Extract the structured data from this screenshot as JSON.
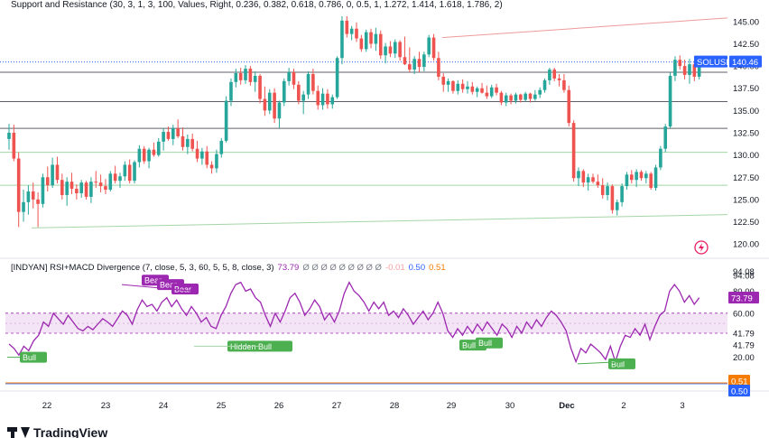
{
  "chart_title": "Support and Resistance (30, 3, 1, 3, 100, Values, Right, 0.236, 0.382, 0.618, 0.786, 0, 0.5, 1, 1.272, 1.414, 1.618, 1.786, 2)",
  "symbol_badge": "SOLUSD",
  "last_price_badge": "140.46",
  "indicator": {
    "name": "[INDYAN] RSI+MACD Divergence (7, close, 5, 3, 60, 5, 5, 8, close, 3)",
    "rsi_value": "73.79",
    "placeholders": "Ø Ø Ø Ø Ø Ø Ø Ø Ø",
    "v1": "-0.01",
    "v2": "0.50",
    "v3": "0.51",
    "badge_rsi": "73.79",
    "badge_v3": "0.51",
    "badge_v2": "0.50"
  },
  "branding": {
    "logo_text": "TradingView"
  },
  "colors": {
    "up": "#26a69a",
    "down": "#ef5350",
    "rsi_line": "#9c27b0",
    "band_fill": "#f3e5f5",
    "support_line": "#a5d6a7",
    "resistance_line": "#ef9a9a",
    "badge_blue": "#2962ff",
    "badge_orange": "#f57c00",
    "label_green": "#4caf50",
    "label_purple": "#9c27b0"
  },
  "chart_data": {
    "type": "candlestick",
    "x_tick_labels": [
      "22",
      "23",
      "24",
      "25",
      "26",
      "27",
      "28",
      "29",
      "30",
      "Dec",
      "2",
      "3"
    ],
    "price_axis_labels": [
      "145.00",
      "142.50",
      "140.00",
      "137.50",
      "135.00",
      "132.50",
      "130.00",
      "127.50",
      "125.00",
      "122.50",
      "120.00"
    ],
    "price_range": [
      119.0,
      146.0
    ],
    "last_price": 140.46,
    "ohlc": [
      [
        131.8,
        133.5,
        130.6,
        132.5
      ],
      [
        132.5,
        133.4,
        129.3,
        129.6
      ],
      [
        129.6,
        130.3,
        121.9,
        123.6
      ],
      [
        123.6,
        126.1,
        122.5,
        124.7
      ],
      [
        124.7,
        126.6,
        123.3,
        125.9
      ],
      [
        125.9,
        126.9,
        124.0,
        125.0
      ],
      [
        125.0,
        125.8,
        121.9,
        124.5
      ],
      [
        124.5,
        127.9,
        124.1,
        127.5
      ],
      [
        127.5,
        128.7,
        125.9,
        126.6
      ],
      [
        126.6,
        129.7,
        126.3,
        128.9
      ],
      [
        128.9,
        129.8,
        126.8,
        127.2
      ],
      [
        127.2,
        127.9,
        125.0,
        125.5
      ],
      [
        125.5,
        127.5,
        124.3,
        127.0
      ],
      [
        127.0,
        128.0,
        125.6,
        126.2
      ],
      [
        126.2,
        126.7,
        125.0,
        125.7
      ],
      [
        125.7,
        127.2,
        125.2,
        126.9
      ],
      [
        126.9,
        127.1,
        125.0,
        125.3
      ],
      [
        125.3,
        127.5,
        124.6,
        127.0
      ],
      [
        127.0,
        128.2,
        126.3,
        126.9
      ],
      [
        126.9,
        127.8,
        125.8,
        126.5
      ],
      [
        126.5,
        127.3,
        125.6,
        126.1
      ],
      [
        126.1,
        128.2,
        125.9,
        127.9
      ],
      [
        127.9,
        128.8,
        126.8,
        127.1
      ],
      [
        127.1,
        128.0,
        126.3,
        127.6
      ],
      [
        127.6,
        129.3,
        127.1,
        128.9
      ],
      [
        128.9,
        129.5,
        126.8,
        127.1
      ],
      [
        127.1,
        129.4,
        126.8,
        129.2
      ],
      [
        129.2,
        131.1,
        128.6,
        130.7
      ],
      [
        130.7,
        131.0,
        129.0,
        129.3
      ],
      [
        129.3,
        130.8,
        128.5,
        130.6
      ],
      [
        130.6,
        131.4,
        129.8,
        130.0
      ],
      [
        130.0,
        131.9,
        129.8,
        131.5
      ],
      [
        131.5,
        133.0,
        130.5,
        132.6
      ],
      [
        132.6,
        133.2,
        131.6,
        131.8
      ],
      [
        131.8,
        133.4,
        131.1,
        133.0
      ],
      [
        133.0,
        134.0,
        131.9,
        132.1
      ],
      [
        132.1,
        133.1,
        130.5,
        130.9
      ],
      [
        130.9,
        132.3,
        130.1,
        131.8
      ],
      [
        131.8,
        132.4,
        130.4,
        130.7
      ],
      [
        130.7,
        131.6,
        129.2,
        129.6
      ],
      [
        129.6,
        130.8,
        128.9,
        130.4
      ],
      [
        130.4,
        131.0,
        128.5,
        128.9
      ],
      [
        128.9,
        129.3,
        127.9,
        128.5
      ],
      [
        128.5,
        130.6,
        128.0,
        130.1
      ],
      [
        130.1,
        131.9,
        129.7,
        131.6
      ],
      [
        131.6,
        136.6,
        131.4,
        136.1
      ],
      [
        136.1,
        138.6,
        135.5,
        138.2
      ],
      [
        138.2,
        139.7,
        137.6,
        139.2
      ],
      [
        139.2,
        139.8,
        137.9,
        138.4
      ],
      [
        138.4,
        140.1,
        138.0,
        139.7
      ],
      [
        139.7,
        140.0,
        137.8,
        138.2
      ],
      [
        138.2,
        139.4,
        137.1,
        138.9
      ],
      [
        138.9,
        139.1,
        135.8,
        136.3
      ],
      [
        136.3,
        137.7,
        134.4,
        135.0
      ],
      [
        135.0,
        137.4,
        134.6,
        137.0
      ],
      [
        137.0,
        137.5,
        133.6,
        134.1
      ],
      [
        134.1,
        136.1,
        133.0,
        135.9
      ],
      [
        135.9,
        138.6,
        135.5,
        138.3
      ],
      [
        138.3,
        139.8,
        137.8,
        139.3
      ],
      [
        139.3,
        139.7,
        137.4,
        137.9
      ],
      [
        137.9,
        138.3,
        135.7,
        136.1
      ],
      [
        136.1,
        137.2,
        134.6,
        136.8
      ],
      [
        136.8,
        139.4,
        136.3,
        139.1
      ],
      [
        139.1,
        139.7,
        136.8,
        137.2
      ],
      [
        137.2,
        137.8,
        135.1,
        135.6
      ],
      [
        135.6,
        137.5,
        135.1,
        136.9
      ],
      [
        136.9,
        137.4,
        135.2,
        135.7
      ],
      [
        135.7,
        136.8,
        135.2,
        136.5
      ],
      [
        136.5,
        141.1,
        136.3,
        140.9
      ],
      [
        140.9,
        145.6,
        140.2,
        145.1
      ],
      [
        145.1,
        145.6,
        143.2,
        143.6
      ],
      [
        143.6,
        144.5,
        142.9,
        144.2
      ],
      [
        144.2,
        144.9,
        142.7,
        143.1
      ],
      [
        143.1,
        143.5,
        141.6,
        141.9
      ],
      [
        141.9,
        144.1,
        141.6,
        143.8
      ],
      [
        143.8,
        144.2,
        142.0,
        142.5
      ],
      [
        142.5,
        144.3,
        141.7,
        143.6
      ],
      [
        143.6,
        144.0,
        140.8,
        141.2
      ],
      [
        141.2,
        142.6,
        140.3,
        142.2
      ],
      [
        142.2,
        142.8,
        141.0,
        141.4
      ],
      [
        141.4,
        143.0,
        140.9,
        142.7
      ],
      [
        142.7,
        142.9,
        140.6,
        141.0
      ],
      [
        141.0,
        143.3,
        140.1,
        140.2
      ],
      [
        140.2,
        142.1,
        139.3,
        139.6
      ],
      [
        139.6,
        141.1,
        139.1,
        140.8
      ],
      [
        140.8,
        141.6,
        139.3,
        139.9
      ],
      [
        139.9,
        141.6,
        139.4,
        141.3
      ],
      [
        141.3,
        143.5,
        141.0,
        143.2
      ],
      [
        143.2,
        143.6,
        140.6,
        140.9
      ],
      [
        140.9,
        141.6,
        138.4,
        138.8
      ],
      [
        138.8,
        139.2,
        137.1,
        137.9
      ],
      [
        137.9,
        138.6,
        137.1,
        138.3
      ],
      [
        138.3,
        138.4,
        136.9,
        137.2
      ],
      [
        137.2,
        138.4,
        136.8,
        138.0
      ],
      [
        138.0,
        138.5,
        137.0,
        137.4
      ],
      [
        137.4,
        138.3,
        136.9,
        137.7
      ],
      [
        137.7,
        138.2,
        136.8,
        137.1
      ],
      [
        137.1,
        137.7,
        136.5,
        137.5
      ],
      [
        137.5,
        138.1,
        136.9,
        137.0
      ],
      [
        137.0,
        137.8,
        136.3,
        136.6
      ],
      [
        136.6,
        137.9,
        136.4,
        137.6
      ],
      [
        137.6,
        138.0,
        136.7,
        137.0
      ],
      [
        137.0,
        137.2,
        135.6,
        135.9
      ],
      [
        135.9,
        137.0,
        135.5,
        136.7
      ],
      [
        136.7,
        136.9,
        135.7,
        136.1
      ],
      [
        136.1,
        137.0,
        135.8,
        136.8
      ],
      [
        136.8,
        136.9,
        135.9,
        136.2
      ],
      [
        136.2,
        137.1,
        136.0,
        136.9
      ],
      [
        136.9,
        137.0,
        135.9,
        136.3
      ],
      [
        136.3,
        137.3,
        136.1,
        136.8
      ],
      [
        136.8,
        137.6,
        136.4,
        137.3
      ],
      [
        137.3,
        138.6,
        137.0,
        138.4
      ],
      [
        138.4,
        139.8,
        137.9,
        139.6
      ],
      [
        139.6,
        139.8,
        138.3,
        138.6
      ],
      [
        138.6,
        139.1,
        137.7,
        138.4
      ],
      [
        138.4,
        139.1,
        137.0,
        137.3
      ],
      [
        137.3,
        137.8,
        133.2,
        133.6
      ],
      [
        133.6,
        133.9,
        127.0,
        127.4
      ],
      [
        127.4,
        128.6,
        126.5,
        128.2
      ],
      [
        128.2,
        128.4,
        126.4,
        126.9
      ],
      [
        126.9,
        127.9,
        126.0,
        127.5
      ],
      [
        127.5,
        127.9,
        126.8,
        127.0
      ],
      [
        127.0,
        127.8,
        126.3,
        126.6
      ],
      [
        126.6,
        127.4,
        125.1,
        125.5
      ],
      [
        125.5,
        126.9,
        124.9,
        126.5
      ],
      [
        126.5,
        126.7,
        123.4,
        123.8
      ],
      [
        123.8,
        125.0,
        123.2,
        124.7
      ],
      [
        124.7,
        126.8,
        124.2,
        126.5
      ],
      [
        126.5,
        128.1,
        126.1,
        127.8
      ],
      [
        127.8,
        128.3,
        126.8,
        127.2
      ],
      [
        127.2,
        128.4,
        126.4,
        128.1
      ],
      [
        128.1,
        128.3,
        127.1,
        127.4
      ],
      [
        127.4,
        128.2,
        126.8,
        127.9
      ],
      [
        127.9,
        128.1,
        126.1,
        126.3
      ],
      [
        126.3,
        128.9,
        126.0,
        128.6
      ],
      [
        128.6,
        131.0,
        128.3,
        130.7
      ],
      [
        130.7,
        133.5,
        130.3,
        133.2
      ],
      [
        133.2,
        139.3,
        133.0,
        138.9
      ],
      [
        138.9,
        141.1,
        138.3,
        140.7
      ],
      [
        140.7,
        141.2,
        139.6,
        140.0
      ],
      [
        140.0,
        140.7,
        138.5,
        139.0
      ],
      [
        139.0,
        140.8,
        138.0,
        140.2
      ],
      [
        140.2,
        140.6,
        138.3,
        138.8
      ],
      [
        138.8,
        140.6,
        138.5,
        140.46
      ]
    ],
    "levels": [
      {
        "kind": "resistance-fib",
        "value": 140.46,
        "style": "dotted-blue"
      },
      {
        "kind": "level",
        "value": 139.3,
        "style": "solid-dark"
      },
      {
        "kind": "level",
        "value": 136.0,
        "style": "solid-dark"
      },
      {
        "kind": "level",
        "value": 133.0,
        "style": "solid-dark"
      },
      {
        "kind": "support",
        "value": 130.3,
        "style": "solid-green"
      },
      {
        "kind": "support",
        "value": 126.6,
        "style": "solid-green"
      }
    ],
    "channel": {
      "upper": [
        143.2,
        145.4
      ],
      "lower": [
        121.8,
        123.3
      ]
    },
    "rsi_axis_labels": [
      "94.08",
      "94.08",
      "80.00",
      "60.00",
      "41.79",
      "41.79",
      "20.00"
    ],
    "rsi_range": [
      0,
      100
    ],
    "rsi_band": [
      41.79,
      60.0
    ],
    "rsi_last": 73.79,
    "rsi": [
      32,
      28,
      22,
      30,
      26,
      35,
      40,
      52,
      48,
      60,
      55,
      50,
      58,
      52,
      46,
      44,
      48,
      45,
      50,
      55,
      52,
      48,
      55,
      62,
      58,
      50,
      63,
      72,
      66,
      68,
      62,
      70,
      74,
      66,
      72,
      64,
      58,
      66,
      60,
      52,
      56,
      48,
      46,
      58,
      66,
      78,
      86,
      88,
      80,
      82,
      74,
      70,
      58,
      48,
      60,
      52,
      62,
      74,
      78,
      70,
      58,
      64,
      72,
      66,
      54,
      60,
      52,
      62,
      78,
      88,
      80,
      76,
      70,
      62,
      70,
      64,
      70,
      58,
      62,
      56,
      64,
      58,
      50,
      56,
      62,
      54,
      60,
      70,
      60,
      44,
      38,
      46,
      40,
      48,
      42,
      50,
      44,
      52,
      46,
      40,
      50,
      46,
      38,
      48,
      42,
      52,
      46,
      54,
      48,
      56,
      62,
      58,
      52,
      44,
      28,
      16,
      28,
      24,
      32,
      28,
      24,
      18,
      30,
      16,
      30,
      40,
      38,
      46,
      40,
      50,
      36,
      48,
      58,
      62,
      80,
      86,
      80,
      70,
      76,
      68,
      74
    ]
  }
}
